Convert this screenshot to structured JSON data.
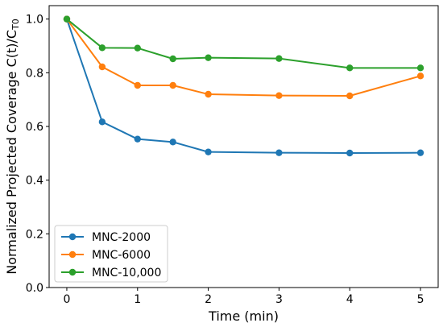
{
  "chart_data": {
    "type": "line",
    "xlabel": "Time (min)",
    "ylabel_main": "Normalized Projected Coverage C(t)/C",
    "ylabel_sub": "T0",
    "xlim": [
      -0.25,
      5.25
    ],
    "ylim": [
      0.0,
      1.05
    ],
    "xticks": [
      "0",
      "1",
      "2",
      "3",
      "4",
      "5"
    ],
    "yticks": [
      "0.0",
      "0.2",
      "0.4",
      "0.6",
      "0.8",
      "1.0"
    ],
    "grid": false,
    "legend_position": "lower-left",
    "series": [
      {
        "name": "MNC-2000",
        "color": "#1f77b4",
        "x": [
          0,
          0.5,
          1,
          1.5,
          2,
          3,
          4,
          5
        ],
        "y": [
          1.0,
          0.617,
          0.553,
          0.542,
          0.505,
          0.502,
          0.501,
          0.502
        ]
      },
      {
        "name": "MNC-6000",
        "color": "#ff7f0e",
        "x": [
          0,
          0.5,
          1,
          1.5,
          2,
          3,
          4,
          5
        ],
        "y": [
          1.0,
          0.822,
          0.753,
          0.753,
          0.72,
          0.715,
          0.714,
          0.788
        ]
      },
      {
        "name": "MNC-10,000",
        "color": "#2ca02c",
        "x": [
          0,
          0.5,
          1,
          1.5,
          2,
          3,
          4,
          5
        ],
        "y": [
          1.0,
          0.893,
          0.892,
          0.852,
          0.856,
          0.853,
          0.818,
          0.818
        ]
      }
    ]
  }
}
